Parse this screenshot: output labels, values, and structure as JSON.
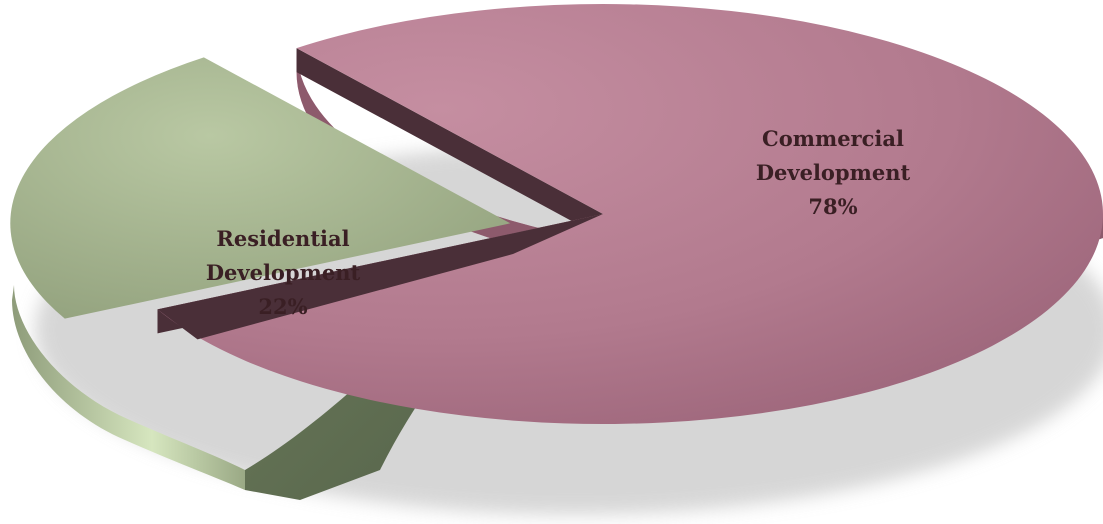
{
  "chart_data": {
    "type": "pie",
    "style": "3d-exploded",
    "title": "",
    "slices": [
      {
        "label": "Commercial Development",
        "label_lines": [
          "Commercial",
          "Development"
        ],
        "value": 78,
        "value_label": "78%",
        "color": "#b7798e",
        "exploded": false
      },
      {
        "label": "Residential Development",
        "label_lines": [
          "Residential",
          "Development"
        ],
        "value": 22,
        "value_label": "22%",
        "color": "#a6b58f",
        "exploded": true
      }
    ],
    "legend": "none",
    "data_labels": "inside"
  }
}
